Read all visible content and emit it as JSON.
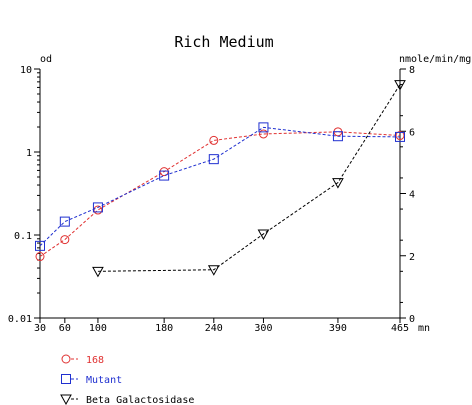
{
  "chart_data": {
    "type": "line",
    "title": "Rich Medium",
    "y_left_label": "od",
    "y_right_label": "nmole/min/mg",
    "x_unit": "mn",
    "x_ticks": [
      30,
      60,
      100,
      180,
      240,
      300,
      390,
      465
    ],
    "y_left_scale": "log",
    "y_left_range": [
      0.01,
      10
    ],
    "y_left_ticks": [
      "0.01",
      "0.1",
      "1",
      "10"
    ],
    "y_right_range": [
      0,
      8
    ],
    "y_right_ticks": [
      "0",
      "2",
      "4",
      "6",
      "8"
    ],
    "grid": false,
    "legend_position": "bottom-left",
    "series": [
      {
        "name": "168",
        "axis": "left",
        "color": "#e03030",
        "marker": "circle",
        "x": [
          30,
          60,
          100,
          180,
          240,
          300,
          390,
          465
        ],
        "y": [
          0.055,
          0.088,
          0.2,
          0.58,
          1.38,
          1.65,
          1.75,
          1.58
        ]
      },
      {
        "name": "Mutant",
        "axis": "left",
        "color": "#2030d0",
        "marker": "square",
        "x": [
          30,
          60,
          100,
          180,
          240,
          300,
          390,
          465
        ],
        "y": [
          0.074,
          0.145,
          0.215,
          0.52,
          0.82,
          1.98,
          1.55,
          1.52
        ]
      },
      {
        "name": "Beta Galactosidase",
        "axis": "right",
        "color": "#000000",
        "marker": "triangle-down",
        "x": [
          100,
          240,
          300,
          390,
          465
        ],
        "y": [
          1.5,
          1.55,
          2.7,
          4.35,
          7.5
        ]
      }
    ]
  }
}
